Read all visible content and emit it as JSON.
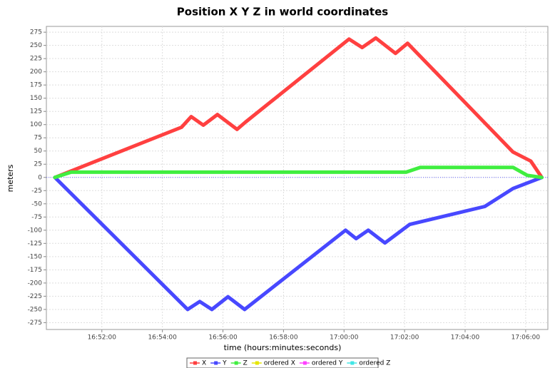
{
  "chart_data": {
    "type": "line",
    "title": "Position X Y Z in world coordinates",
    "xlabel": "time (hours:minutes:seconds)",
    "ylabel": "meters",
    "xlim": [
      "16:50:10",
      "17:06:44"
    ],
    "xticks": [
      "16:52:00",
      "16:54:00",
      "16:56:00",
      "16:58:00",
      "17:00:00",
      "17:02:00",
      "17:04:00",
      "17:06:00"
    ],
    "ylim": [
      -288,
      286
    ],
    "yticks": [
      275,
      250,
      225,
      200,
      175,
      150,
      125,
      100,
      75,
      50,
      25,
      0,
      -25,
      -50,
      -75,
      -100,
      -125,
      -150,
      -175,
      -200,
      -225,
      -250,
      -275
    ],
    "grid": true,
    "legend": "bottom",
    "series": [
      {
        "name": "X",
        "color": "#ff4040",
        "x": [
          "16:50:27",
          "16:54:38",
          "16:54:57",
          "16:55:21",
          "16:55:49",
          "16:56:28",
          "16:56:45",
          "17:00:10",
          "17:00:36",
          "17:01:03",
          "17:01:42",
          "17:02:06",
          "17:05:35",
          "17:06:10",
          "17:06:32"
        ],
        "values": [
          0,
          95,
          115,
          99,
          119,
          91,
          105,
          262,
          246,
          264,
          235,
          254,
          48,
          31,
          0
        ]
      },
      {
        "name": "Y",
        "color": "#4848ff",
        "x": [
          "16:50:27",
          "16:54:50",
          "16:55:14",
          "16:55:38",
          "16:56:10",
          "16:56:43",
          "17:00:03",
          "17:00:24",
          "17:00:48",
          "17:01:21",
          "17:02:10",
          "17:04:39",
          "17:05:35",
          "17:06:32"
        ],
        "values": [
          0,
          -250,
          -235,
          -250,
          -226,
          -250,
          -100,
          -116,
          -100,
          -124,
          -89,
          -55,
          -21,
          0
        ]
      },
      {
        "name": "Z",
        "color": "#40ee40",
        "x": [
          "16:50:27",
          "16:50:59",
          "17:02:03",
          "17:02:31",
          "17:05:35",
          "17:06:03",
          "17:06:32"
        ],
        "values": [
          0,
          10,
          10,
          19,
          19,
          4,
          0
        ]
      },
      {
        "name": "ordered X",
        "color": "#e6e600",
        "x": [],
        "values": []
      },
      {
        "name": "ordered Y",
        "color": "#ff40ff",
        "x": [],
        "values": []
      },
      {
        "name": "ordered Z",
        "color": "#40e6e6",
        "x": [],
        "values": []
      }
    ]
  }
}
